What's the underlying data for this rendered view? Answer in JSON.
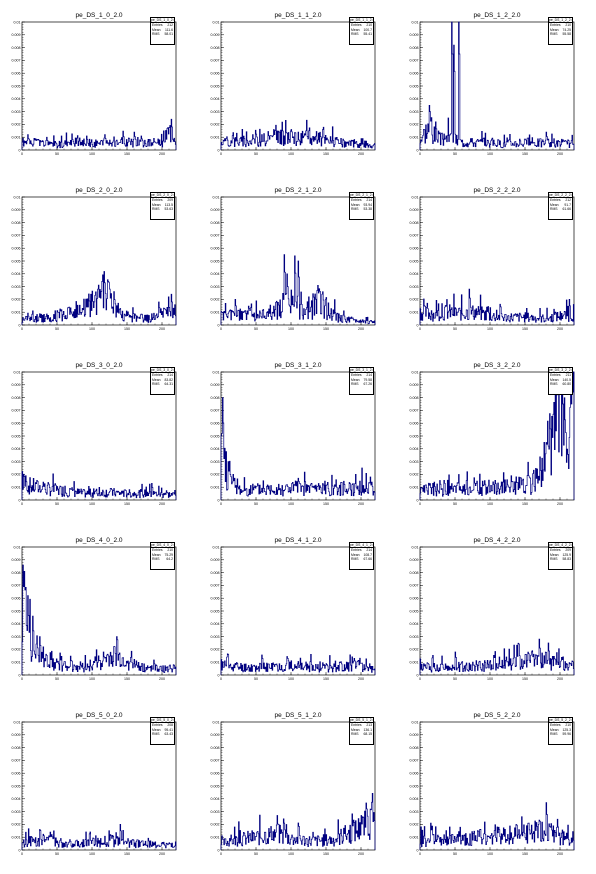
{
  "colors": {
    "line": "#000080",
    "frame": "#000000",
    "background": "#ffffff"
  },
  "stat_labels": {
    "entries": "Entries",
    "mean": "Mean",
    "rms": "RMS"
  },
  "y_ticks": [
    "0",
    "0.001",
    "0.002",
    "0.003",
    "0.004",
    "0.005",
    "0.006",
    "0.007",
    "0.008",
    "0.009",
    "0.01"
  ],
  "x_ticks": [
    "0",
    "50",
    "100",
    "150",
    "200"
  ],
  "chart_data": [
    {
      "type": "line",
      "title": "pe_DS_1_0_2.0",
      "stats": {
        "name": "pe_DS_1_0_2.0",
        "entries": "212",
        "mean": "111.6",
        "rms": "58.01"
      },
      "xlim": [
        0,
        220
      ],
      "ylim": [
        0,
        0.01
      ],
      "profile": [
        [
          0,
          0.0006
        ],
        [
          10,
          0.0005
        ],
        [
          20,
          0.0006
        ],
        [
          40,
          0.0004
        ],
        [
          60,
          0.0005
        ],
        [
          80,
          0.0006
        ],
        [
          100,
          0.0005
        ],
        [
          120,
          0.0006
        ],
        [
          140,
          0.0007
        ],
        [
          160,
          0.0005
        ],
        [
          180,
          0.0006
        ],
        [
          200,
          0.0006
        ],
        [
          212,
          0.0014
        ],
        [
          220,
          0.0002
        ]
      ],
      "spikes": [
        [
          8,
          0.0012
        ],
        [
          35,
          0.001
        ],
        [
          92,
          0.0011
        ],
        [
          118,
          0.0012
        ],
        [
          160,
          0.0014
        ],
        [
          170,
          0.0011
        ],
        [
          213,
          0.0024
        ]
      ]
    },
    {
      "type": "line",
      "title": "pe_DS_1_1_2.0",
      "stats": {
        "name": "pe_DS_1_1_2.0",
        "entries": "210",
        "mean": "100.7",
        "rms": "55.41"
      },
      "xlim": [
        0,
        220
      ],
      "ylim": [
        0,
        0.01
      ],
      "profile": [
        [
          0,
          0.0007
        ],
        [
          30,
          0.0007
        ],
        [
          60,
          0.0008
        ],
        [
          80,
          0.001
        ],
        [
          100,
          0.0009
        ],
        [
          120,
          0.001
        ],
        [
          140,
          0.0009
        ],
        [
          160,
          0.0007
        ],
        [
          180,
          0.0005
        ],
        [
          200,
          0.0005
        ],
        [
          220,
          0.0004
        ]
      ],
      "spikes": [
        [
          75,
          0.0016
        ],
        [
          100,
          0.0016
        ],
        [
          125,
          0.0015
        ],
        [
          145,
          0.0016
        ],
        [
          45,
          0.0012
        ]
      ]
    },
    {
      "type": "line",
      "title": "pe_DS_1_2_2.0",
      "stats": {
        "name": "pe_DS_1_2_2.0",
        "entries": "210",
        "mean": "74.25",
        "rms": "55.58"
      },
      "xlim": [
        0,
        220
      ],
      "ylim": [
        0,
        0.01
      ],
      "profile": [
        [
          0,
          0.0008
        ],
        [
          12,
          0.0018
        ],
        [
          20,
          0.0012
        ],
        [
          30,
          0.0008
        ],
        [
          40,
          0.001
        ],
        [
          60,
          0.0006
        ],
        [
          80,
          0.0006
        ],
        [
          120,
          0.0005
        ],
        [
          160,
          0.0006
        ],
        [
          200,
          0.0005
        ],
        [
          220,
          0.0005
        ]
      ],
      "spikes": [
        [
          14,
          0.003
        ],
        [
          22,
          0.0022
        ],
        [
          45,
          0.01
        ],
        [
          48,
          0.0082
        ],
        [
          55,
          0.01
        ],
        [
          180,
          0.0014
        ]
      ]
    },
    {
      "type": "line",
      "title": "pe_DS_2_0_2.0",
      "stats": {
        "name": "pe_DS_2_0_2.0",
        "entries": "209",
        "mean": "113.5",
        "rms": "53.63"
      },
      "xlim": [
        0,
        220
      ],
      "ylim": [
        0,
        0.01
      ],
      "profile": [
        [
          0,
          0.0005
        ],
        [
          40,
          0.0006
        ],
        [
          70,
          0.001
        ],
        [
          90,
          0.0013
        ],
        [
          110,
          0.002
        ],
        [
          120,
          0.0027
        ],
        [
          130,
          0.0018
        ],
        [
          140,
          0.0008
        ],
        [
          160,
          0.0006
        ],
        [
          180,
          0.0005
        ],
        [
          200,
          0.0008
        ],
        [
          220,
          0.0012
        ]
      ],
      "spikes": [
        [
          118,
          0.0033
        ],
        [
          125,
          0.0028
        ],
        [
          213,
          0.0024
        ],
        [
          195,
          0.0018
        ]
      ]
    },
    {
      "type": "line",
      "title": "pe_DS_2_1_2.0",
      "stats": {
        "name": "pe_DS_2_1_2.0",
        "entries": "214",
        "mean": "93.94",
        "rms": "53.38"
      },
      "xlim": [
        0,
        220
      ],
      "ylim": [
        0,
        0.01
      ],
      "profile": [
        [
          0,
          0.0007
        ],
        [
          30,
          0.0008
        ],
        [
          60,
          0.0008
        ],
        [
          80,
          0.0012
        ],
        [
          100,
          0.002
        ],
        [
          110,
          0.001
        ],
        [
          130,
          0.0012
        ],
        [
          140,
          0.002
        ],
        [
          150,
          0.0012
        ],
        [
          170,
          0.0005
        ],
        [
          200,
          0.0003
        ],
        [
          220,
          0.0002
        ]
      ],
      "spikes": [
        [
          20,
          0.002
        ],
        [
          90,
          0.0055
        ],
        [
          94,
          0.004
        ],
        [
          105,
          0.0054
        ],
        [
          110,
          0.005
        ],
        [
          145,
          0.0026
        ]
      ]
    },
    {
      "type": "line",
      "title": "pe_DS_2_2_2.0",
      "stats": {
        "name": "pe_DS_2_2_2.0",
        "entries": "212",
        "mean": "91.7",
        "rms": "61.66"
      },
      "xlim": [
        0,
        220
      ],
      "ylim": [
        0,
        0.01
      ],
      "profile": [
        [
          0,
          0.001
        ],
        [
          20,
          0.0008
        ],
        [
          40,
          0.001
        ],
        [
          60,
          0.0009
        ],
        [
          80,
          0.001
        ],
        [
          100,
          0.0007
        ],
        [
          120,
          0.0006
        ],
        [
          150,
          0.0006
        ],
        [
          180,
          0.0005
        ],
        [
          200,
          0.0007
        ],
        [
          220,
          0.0008
        ]
      ],
      "spikes": [
        [
          10,
          0.0017
        ],
        [
          35,
          0.0014
        ],
        [
          70,
          0.0028
        ],
        [
          95,
          0.0014
        ],
        [
          213,
          0.002
        ]
      ]
    },
    {
      "type": "line",
      "title": "pe_DS_3_0_2.0",
      "stats": {
        "name": "pe_DS_3_0_2.0",
        "entries": "214",
        "mean": "83.82",
        "rms": "64.31"
      },
      "xlim": [
        0,
        220
      ],
      "ylim": [
        0,
        0.01
      ],
      "profile": [
        [
          0,
          0.0013
        ],
        [
          10,
          0.0011
        ],
        [
          30,
          0.0009
        ],
        [
          60,
          0.0007
        ],
        [
          90,
          0.0005
        ],
        [
          120,
          0.0006
        ],
        [
          150,
          0.0005
        ],
        [
          180,
          0.0005
        ],
        [
          220,
          0.0004
        ]
      ],
      "spikes": [
        [
          5,
          0.0019
        ],
        [
          30,
          0.0014
        ],
        [
          185,
          0.0013
        ]
      ]
    },
    {
      "type": "line",
      "title": "pe_DS_3_1_2.0",
      "stats": {
        "name": "pe_DS_3_1_2.0",
        "entries": "214",
        "mean": "79.58",
        "rms": "67.26"
      },
      "xlim": [
        0,
        220
      ],
      "ylim": [
        0,
        0.01
      ],
      "profile": [
        [
          0,
          0.006
        ],
        [
          3,
          0.005
        ],
        [
          6,
          0.0025
        ],
        [
          12,
          0.0015
        ],
        [
          25,
          0.0008
        ],
        [
          60,
          0.0008
        ],
        [
          100,
          0.0009
        ],
        [
          140,
          0.0009
        ],
        [
          180,
          0.0009
        ],
        [
          220,
          0.001
        ]
      ],
      "spikes": [
        [
          2,
          0.008
        ],
        [
          10,
          0.003
        ],
        [
          17,
          0.002
        ],
        [
          110,
          0.0017
        ],
        [
          215,
          0.0014
        ]
      ]
    },
    {
      "type": "line",
      "title": "pe_DS_3_2_2.0",
      "stats": {
        "name": "pe_DS_3_2_2.0",
        "entries": "211",
        "mean": "140.5",
        "rms": "60.80"
      },
      "xlim": [
        0,
        220
      ],
      "ylim": [
        0,
        0.01
      ],
      "profile": [
        [
          0,
          0.0008
        ],
        [
          40,
          0.0008
        ],
        [
          80,
          0.0009
        ],
        [
          120,
          0.001
        ],
        [
          160,
          0.0012
        ],
        [
          175,
          0.0025
        ],
        [
          190,
          0.005
        ],
        [
          200,
          0.007
        ],
        [
          210,
          0.004
        ],
        [
          220,
          0.006
        ]
      ],
      "spikes": [
        [
          20,
          0.0014
        ],
        [
          130,
          0.0019
        ],
        [
          195,
          0.0082
        ],
        [
          203,
          0.01
        ],
        [
          215,
          0.01
        ]
      ]
    },
    {
      "type": "line",
      "title": "pe_DS_4_0_2.0",
      "stats": {
        "name": "pe_DS_4_0_2.0",
        "entries": "210",
        "mean": "75.29",
        "rms": "64.2"
      },
      "xlim": [
        0,
        220
      ],
      "ylim": [
        0,
        0.01
      ],
      "profile": [
        [
          0,
          0.006
        ],
        [
          5,
          0.005
        ],
        [
          10,
          0.003
        ],
        [
          20,
          0.002
        ],
        [
          30,
          0.0012
        ],
        [
          50,
          0.0008
        ],
        [
          90,
          0.0006
        ],
        [
          130,
          0.0014
        ],
        [
          150,
          0.001
        ],
        [
          170,
          0.0006
        ],
        [
          200,
          0.0005
        ],
        [
          220,
          0.0005
        ]
      ],
      "spikes": [
        [
          3,
          0.0081
        ],
        [
          8,
          0.0062
        ],
        [
          15,
          0.0046
        ],
        [
          25,
          0.003
        ],
        [
          135,
          0.003
        ]
      ]
    },
    {
      "type": "line",
      "title": "pe_DS_4_1_2.0",
      "stats": {
        "name": "pe_DS_4_1_2.0",
        "entries": "214",
        "mean": "108.7",
        "rms": "67.66"
      },
      "xlim": [
        0,
        220
      ],
      "ylim": [
        0,
        0.01
      ],
      "profile": [
        [
          0,
          0.0008
        ],
        [
          30,
          0.0006
        ],
        [
          60,
          0.0006
        ],
        [
          100,
          0.0007
        ],
        [
          140,
          0.0006
        ],
        [
          180,
          0.0007
        ],
        [
          200,
          0.0007
        ],
        [
          220,
          0.0005
        ]
      ],
      "spikes": [
        [
          8,
          0.0014
        ],
        [
          95,
          0.0013
        ],
        [
          190,
          0.0013
        ]
      ]
    },
    {
      "type": "line",
      "title": "pe_DS_4_2_2.0",
      "stats": {
        "name": "pe_DS_4_2_2.0",
        "entries": "209",
        "mean": "125.9",
        "rms": "58.83"
      },
      "xlim": [
        0,
        220
      ],
      "ylim": [
        0,
        0.01
      ],
      "profile": [
        [
          0,
          0.0006
        ],
        [
          40,
          0.0006
        ],
        [
          80,
          0.0007
        ],
        [
          120,
          0.0009
        ],
        [
          150,
          0.0011
        ],
        [
          170,
          0.0013
        ],
        [
          190,
          0.0009
        ],
        [
          220,
          0.0008
        ]
      ],
      "spikes": [
        [
          50,
          0.0018
        ],
        [
          160,
          0.0019
        ],
        [
          170,
          0.0028
        ],
        [
          183,
          0.0025
        ],
        [
          150,
          0.0016
        ]
      ]
    },
    {
      "type": "line",
      "title": "pe_DS_5_0_2.0",
      "stats": {
        "name": "pe_DS_5_0_2.0",
        "entries": "208",
        "mean": "95.41",
        "rms": "63.43"
      },
      "xlim": [
        0,
        220
      ],
      "ylim": [
        0,
        0.01
      ],
      "profile": [
        [
          0,
          0.0005
        ],
        [
          20,
          0.0008
        ],
        [
          40,
          0.0008
        ],
        [
          60,
          0.0005
        ],
        [
          100,
          0.0006
        ],
        [
          130,
          0.0007
        ],
        [
          160,
          0.0005
        ],
        [
          200,
          0.0004
        ],
        [
          220,
          0.0004
        ]
      ],
      "spikes": [
        [
          25,
          0.0016
        ],
        [
          40,
          0.0014
        ],
        [
          140,
          0.002
        ]
      ]
    },
    {
      "type": "line",
      "title": "pe_DS_5_1_2.0",
      "stats": {
        "name": "pe_DS_5_1_2.0",
        "entries": "213",
        "mean": "136.1",
        "rms": "68.15"
      },
      "xlim": [
        0,
        220
      ],
      "ylim": [
        0,
        0.01
      ],
      "profile": [
        [
          0,
          0.0005
        ],
        [
          20,
          0.0008
        ],
        [
          50,
          0.001
        ],
        [
          80,
          0.0013
        ],
        [
          100,
          0.0009
        ],
        [
          130,
          0.0007
        ],
        [
          160,
          0.0008
        ],
        [
          190,
          0.0015
        ],
        [
          210,
          0.002
        ],
        [
          220,
          0.0018
        ]
      ],
      "spikes": [
        [
          80,
          0.0027
        ],
        [
          90,
          0.0021
        ],
        [
          200,
          0.0027
        ],
        [
          213,
          0.0032
        ],
        [
          175,
          0.0017
        ]
      ]
    },
    {
      "type": "line",
      "title": "pe_DS_5_2_2.0",
      "stats": {
        "name": "pe_DS_5_2_2.0",
        "entries": "210",
        "mean": "125.3",
        "rms": "59.96"
      },
      "xlim": [
        0,
        220
      ],
      "ylim": [
        0,
        0.01
      ],
      "profile": [
        [
          0,
          0.0007
        ],
        [
          40,
          0.0008
        ],
        [
          80,
          0.001
        ],
        [
          120,
          0.0011
        ],
        [
          150,
          0.0013
        ],
        [
          170,
          0.0015
        ],
        [
          185,
          0.0013
        ],
        [
          200,
          0.001
        ],
        [
          220,
          0.0008
        ]
      ],
      "spikes": [
        [
          15,
          0.0021
        ],
        [
          110,
          0.0018
        ],
        [
          155,
          0.0021
        ],
        [
          180,
          0.0037
        ],
        [
          196,
          0.0024
        ]
      ]
    }
  ]
}
